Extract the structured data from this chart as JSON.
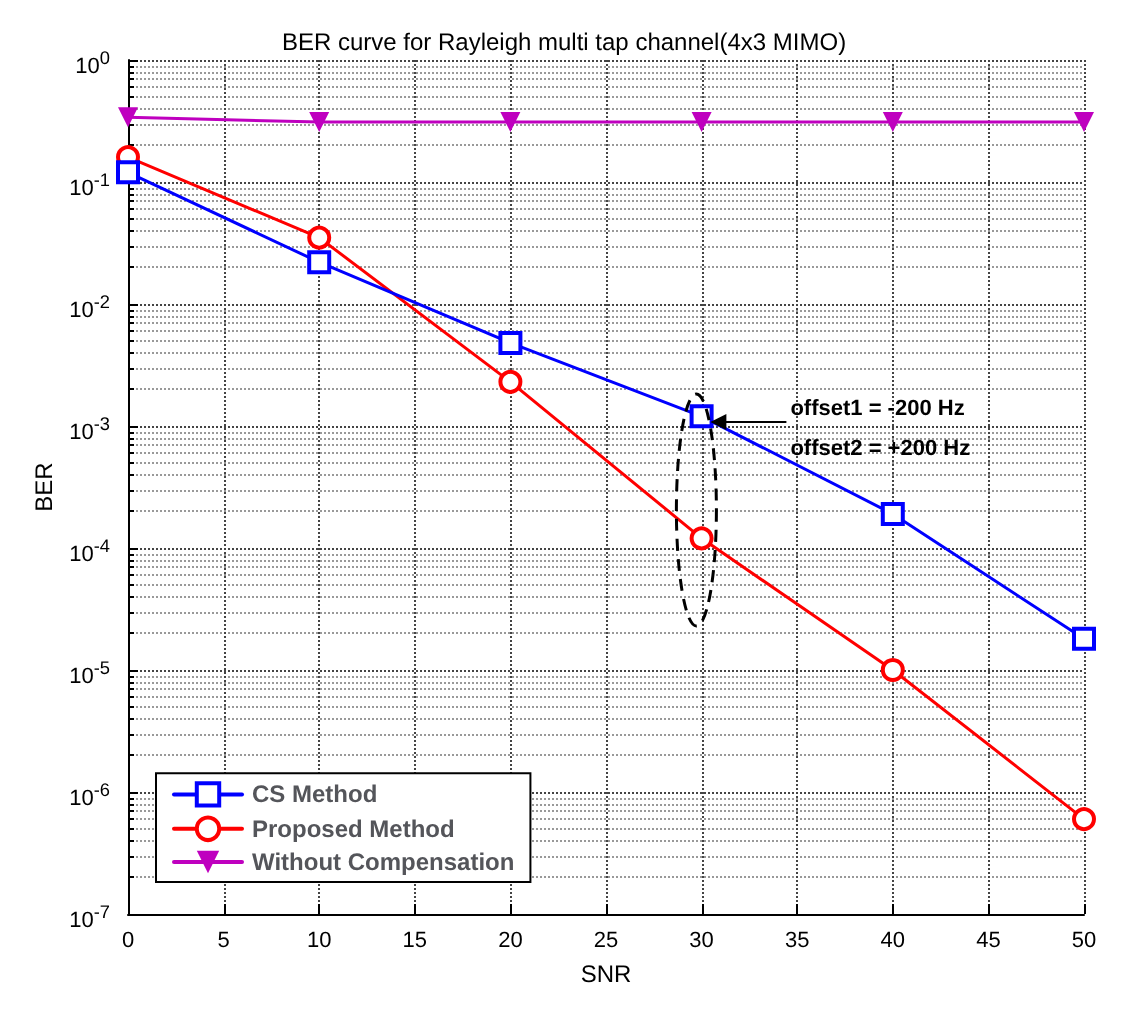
{
  "chart_data": {
    "type": "line",
    "title": "BER curve for Rayleigh multi tap channel(4x3 MIMO)",
    "xlabel": "SNR",
    "ylabel": "BER",
    "x": [
      0,
      10,
      20,
      30,
      40,
      50
    ],
    "series": [
      {
        "name": "CS Method",
        "color": "#0000ff",
        "marker": "square",
        "values": [
          0.12,
          0.022,
          0.0048,
          0.0012,
          0.00019,
          1.8e-05
        ]
      },
      {
        "name": "Proposed Method",
        "color": "#ff0000",
        "marker": "circle",
        "values": [
          0.16,
          0.035,
          0.0023,
          0.00012,
          1e-05,
          6e-07
        ]
      },
      {
        "name": "Without Compensation",
        "color": "#bf00bf",
        "marker": "triangle",
        "values": [
          0.34,
          0.31,
          0.31,
          0.31,
          0.31,
          0.31
        ]
      }
    ],
    "log": "y",
    "xlim": [
      0,
      50
    ],
    "xticks": [
      0,
      5,
      10,
      15,
      20,
      25,
      30,
      35,
      40,
      45,
      50
    ],
    "ylim": [
      1e-07,
      1
    ],
    "yticks": [
      {
        "value": 1e-07,
        "label": "10$^{-7}$"
      },
      {
        "value": 1e-06,
        "label": "10$^{-6}$"
      },
      {
        "value": 1e-05,
        "label": "10$^{-5}$"
      },
      {
        "value": 0.0001,
        "label": "10$^{-4}$"
      },
      {
        "value": 0.001,
        "label": "10$^{-3}$"
      },
      {
        "value": 0.01,
        "label": "10$^{-2}$"
      },
      {
        "value": 0.1,
        "label": "10$^{-1}$"
      },
      {
        "value": 1,
        "label": "10$^{0}$"
      }
    ],
    "grid": true,
    "legend": "bottom left",
    "line_style": "solid",
    "annotations": [
      "offset1 = -200 Hz",
      "offset2 = +200 Hz"
    ]
  }
}
